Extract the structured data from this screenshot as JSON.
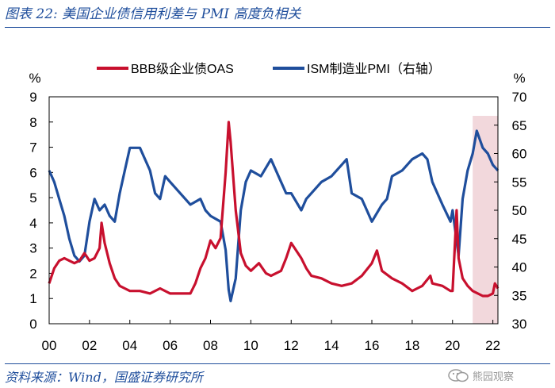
{
  "title": "图表 22:  美国企业债信用利差与 PMI 高度负相关",
  "source": "资料来源：Wind，国盛证券研究所",
  "watermark": "熊园观察",
  "colors": {
    "oas": "#c8102e",
    "pmi": "#1f4e9c",
    "highlight": "#f2d8dc",
    "accent": "#1f4e9c"
  },
  "chart_data": {
    "type": "line",
    "title": "美国企业债信用利差与 PMI 高度负相关",
    "xlabel": "",
    "x_ticks": [
      "00",
      "02",
      "04",
      "06",
      "08",
      "10",
      "12",
      "14",
      "16",
      "18",
      "20",
      "22"
    ],
    "xlim": [
      2000.0,
      2022.25
    ],
    "left_axis": {
      "unit": "%",
      "ylim": [
        0,
        9
      ],
      "ticks": [
        "0",
        "1",
        "2",
        "3",
        "4",
        "5",
        "6",
        "7",
        "8",
        "9"
      ]
    },
    "right_axis": {
      "unit": "%",
      "ylim": [
        30,
        70
      ],
      "ticks": [
        "30",
        "35",
        "40",
        "45",
        "50",
        "55",
        "60",
        "65",
        "70"
      ]
    },
    "legend_position": "top",
    "highlight": {
      "x_start": 2021.0,
      "x_end": 2022.25
    },
    "series": [
      {
        "name": "BBB级企业债OAS",
        "axis": "left",
        "x": [
          2000.0,
          2000.25,
          2000.5,
          2000.75,
          2001.0,
          2001.25,
          2001.5,
          2001.75,
          2002.0,
          2002.25,
          2002.5,
          2002.6,
          2002.75,
          2003.0,
          2003.25,
          2003.5,
          2003.75,
          2004.0,
          2004.5,
          2005.0,
          2005.5,
          2006.0,
          2006.5,
          2007.0,
          2007.25,
          2007.5,
          2007.75,
          2008.0,
          2008.25,
          2008.5,
          2008.75,
          2008.9,
          2009.0,
          2009.25,
          2009.5,
          2009.75,
          2010.0,
          2010.4,
          2010.75,
          2011.0,
          2011.5,
          2011.75,
          2012.0,
          2012.5,
          2012.75,
          2013.0,
          2013.5,
          2014.0,
          2014.5,
          2015.0,
          2015.5,
          2016.0,
          2016.25,
          2016.5,
          2017.0,
          2017.5,
          2018.0,
          2018.25,
          2018.5,
          2018.9,
          2019.0,
          2019.5,
          2019.9,
          2020.0,
          2020.2,
          2020.3,
          2020.5,
          2020.75,
          2021.0,
          2021.5,
          2021.75,
          2022.0,
          2022.1,
          2022.25
        ],
        "values": [
          1.6,
          2.2,
          2.5,
          2.6,
          2.5,
          2.4,
          2.5,
          2.8,
          2.5,
          2.6,
          3.0,
          4.0,
          3.2,
          2.4,
          1.8,
          1.5,
          1.4,
          1.3,
          1.3,
          1.2,
          1.4,
          1.2,
          1.2,
          1.2,
          1.6,
          2.2,
          2.6,
          3.3,
          3.0,
          3.4,
          6.0,
          8.0,
          7.2,
          4.5,
          2.8,
          2.3,
          2.1,
          2.4,
          2.0,
          1.9,
          2.1,
          2.6,
          3.2,
          2.6,
          2.2,
          1.9,
          1.8,
          1.6,
          1.5,
          1.6,
          1.9,
          2.4,
          2.9,
          2.1,
          1.8,
          1.6,
          1.3,
          1.4,
          1.5,
          1.9,
          1.6,
          1.5,
          1.3,
          1.3,
          4.5,
          2.6,
          1.8,
          1.5,
          1.3,
          1.1,
          1.1,
          1.2,
          1.6,
          1.4
        ]
      },
      {
        "name": "ISM制造业PMI（右轴）",
        "axis": "right",
        "x": [
          2000.0,
          2000.25,
          2000.5,
          2000.75,
          2001.0,
          2001.25,
          2001.5,
          2001.75,
          2002.0,
          2002.25,
          2002.5,
          2002.75,
          2003.0,
          2003.25,
          2003.5,
          2003.75,
          2004.0,
          2004.5,
          2005.0,
          2005.25,
          2005.5,
          2005.75,
          2006.0,
          2006.5,
          2007.0,
          2007.5,
          2007.75,
          2008.0,
          2008.5,
          2008.75,
          2008.9,
          2009.0,
          2009.25,
          2009.5,
          2009.75,
          2010.0,
          2010.5,
          2011.0,
          2011.5,
          2011.75,
          2012.0,
          2012.5,
          2012.75,
          2013.0,
          2013.5,
          2014.0,
          2014.5,
          2014.75,
          2015.0,
          2015.5,
          2015.75,
          2016.0,
          2016.5,
          2016.75,
          2017.0,
          2017.5,
          2018.0,
          2018.5,
          2018.75,
          2019.0,
          2019.5,
          2019.9,
          2020.0,
          2020.3,
          2020.5,
          2020.75,
          2021.0,
          2021.2,
          2021.5,
          2021.75,
          2022.0,
          2022.25
        ],
        "values": [
          57,
          55,
          52,
          49,
          45,
          42,
          41,
          42,
          48,
          52,
          50,
          51,
          49,
          48,
          53,
          57,
          61,
          61,
          57,
          53,
          52,
          56,
          55,
          53,
          51,
          52,
          50,
          49,
          48,
          43,
          36,
          34,
          38,
          50,
          55,
          57,
          56,
          59,
          55,
          53,
          53,
          50,
          52,
          53,
          55,
          56,
          58,
          59,
          53,
          52,
          50,
          48,
          51,
          52,
          56,
          57,
          59,
          60,
          59,
          55,
          51,
          48,
          50,
          42,
          52,
          57,
          60,
          64,
          61,
          60,
          58,
          57
        ]
      }
    ]
  }
}
